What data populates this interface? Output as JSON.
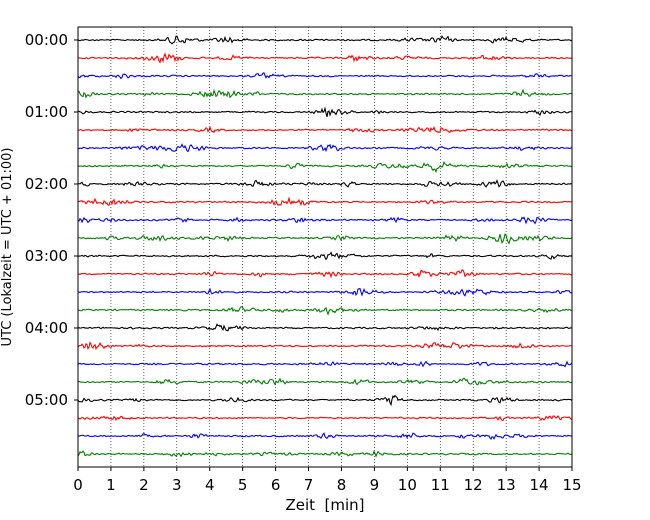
{
  "chart_data": {
    "type": "line",
    "title": "",
    "xlabel": "Zeit  [min]",
    "ylabel": "UTC (Lokalzeit = UTC + 01:00)",
    "xlim": [
      0,
      15
    ],
    "x_ticks": [
      0,
      1,
      2,
      3,
      4,
      5,
      6,
      7,
      8,
      9,
      10,
      11,
      12,
      13,
      14,
      15
    ],
    "x_tick_labels": [
      "0",
      "1",
      "2",
      "3",
      "4",
      "5",
      "6",
      "7",
      "8",
      "9",
      "10",
      "11",
      "12",
      "13",
      "14",
      "15"
    ],
    "y_tick_labels": [
      "00:00",
      "01:00",
      "02:00",
      "03:00",
      "04:00",
      "05:00"
    ],
    "y_tick_rows": [
      0,
      4,
      8,
      12,
      16,
      20
    ],
    "trace_count": 24,
    "trace_interval_min": 15,
    "trace_colors": [
      "#000000",
      "#ff0000",
      "#0000ff",
      "#008000"
    ],
    "grid": "vertical-dotted",
    "legend": "none"
  }
}
